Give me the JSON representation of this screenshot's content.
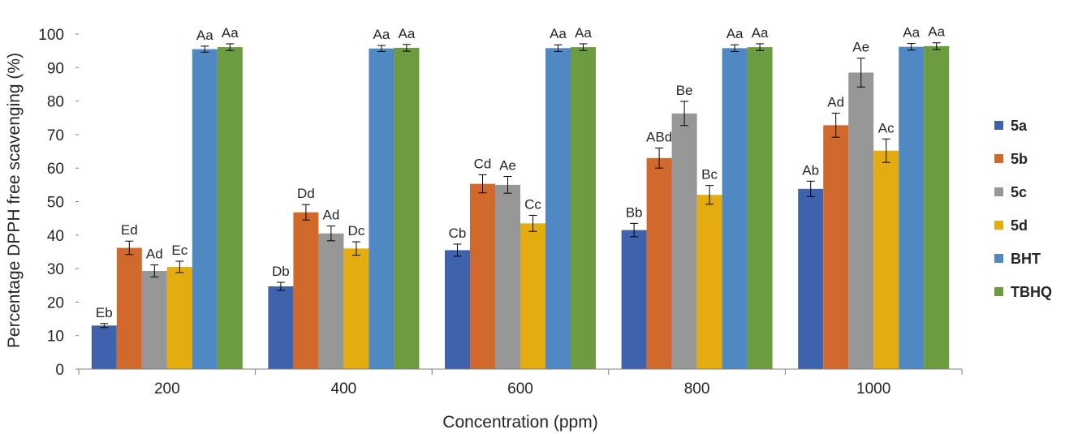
{
  "chart_data": {
    "type": "bar",
    "title": "",
    "xlabel": "Concentration (ppm)",
    "ylabel": "Percentage DPPH free scavenging (%)",
    "ylim": [
      0,
      100
    ],
    "yticks": [
      0,
      10,
      20,
      30,
      40,
      50,
      60,
      70,
      80,
      90,
      100
    ],
    "categories": [
      "200",
      "400",
      "600",
      "800",
      "1000"
    ],
    "legend_position": "right",
    "grid": false,
    "series": [
      {
        "name": "5a",
        "color": "#3f62ad",
        "values": [
          13,
          24.7,
          35.5,
          41.5,
          53.8
        ],
        "errors": [
          0.6,
          1.2,
          1.8,
          2.0,
          2.3
        ],
        "labels": [
          "Eb",
          "Db",
          "Cb",
          "Bb",
          "Ab"
        ]
      },
      {
        "name": "5b",
        "color": "#d2692c",
        "values": [
          36.2,
          46.8,
          55.3,
          63.0,
          72.8
        ],
        "errors": [
          2.0,
          2.3,
          2.7,
          3.0,
          3.6
        ],
        "labels": [
          "Ed",
          "Dd",
          "Cd",
          "ABd",
          "Ad"
        ]
      },
      {
        "name": "5c",
        "color": "#979797",
        "values": [
          29.3,
          40.5,
          55.0,
          76.3,
          88.5
        ],
        "errors": [
          1.8,
          2.2,
          2.5,
          3.6,
          4.3
        ],
        "labels": [
          "Ad",
          "Ad",
          "Ae",
          "Be",
          "Ae"
        ]
      },
      {
        "name": "5d",
        "color": "#e5ac0f",
        "values": [
          30.5,
          36.0,
          43.5,
          52.0,
          65.2
        ],
        "errors": [
          1.7,
          2.0,
          2.4,
          2.8,
          3.5
        ],
        "labels": [
          "Ec",
          "Dc",
          "Cc",
          "Bc",
          "Ac"
        ]
      },
      {
        "name": "BHT",
        "color": "#4f88c2",
        "values": [
          95.5,
          95.7,
          95.8,
          95.8,
          96.2
        ],
        "errors": [
          0.9,
          0.9,
          1.0,
          1.0,
          1.0
        ],
        "labels": [
          "Aa",
          "Aa",
          "Aa",
          "Aa",
          "Aa"
        ]
      },
      {
        "name": "TBHQ",
        "color": "#6d9b3f",
        "values": [
          96.1,
          95.9,
          96.1,
          96.1,
          96.4
        ],
        "errors": [
          1.0,
          1.0,
          1.0,
          1.0,
          1.0
        ],
        "labels": [
          "Aa",
          "Aa",
          "Aa",
          "Aa",
          "Aa"
        ]
      }
    ]
  }
}
